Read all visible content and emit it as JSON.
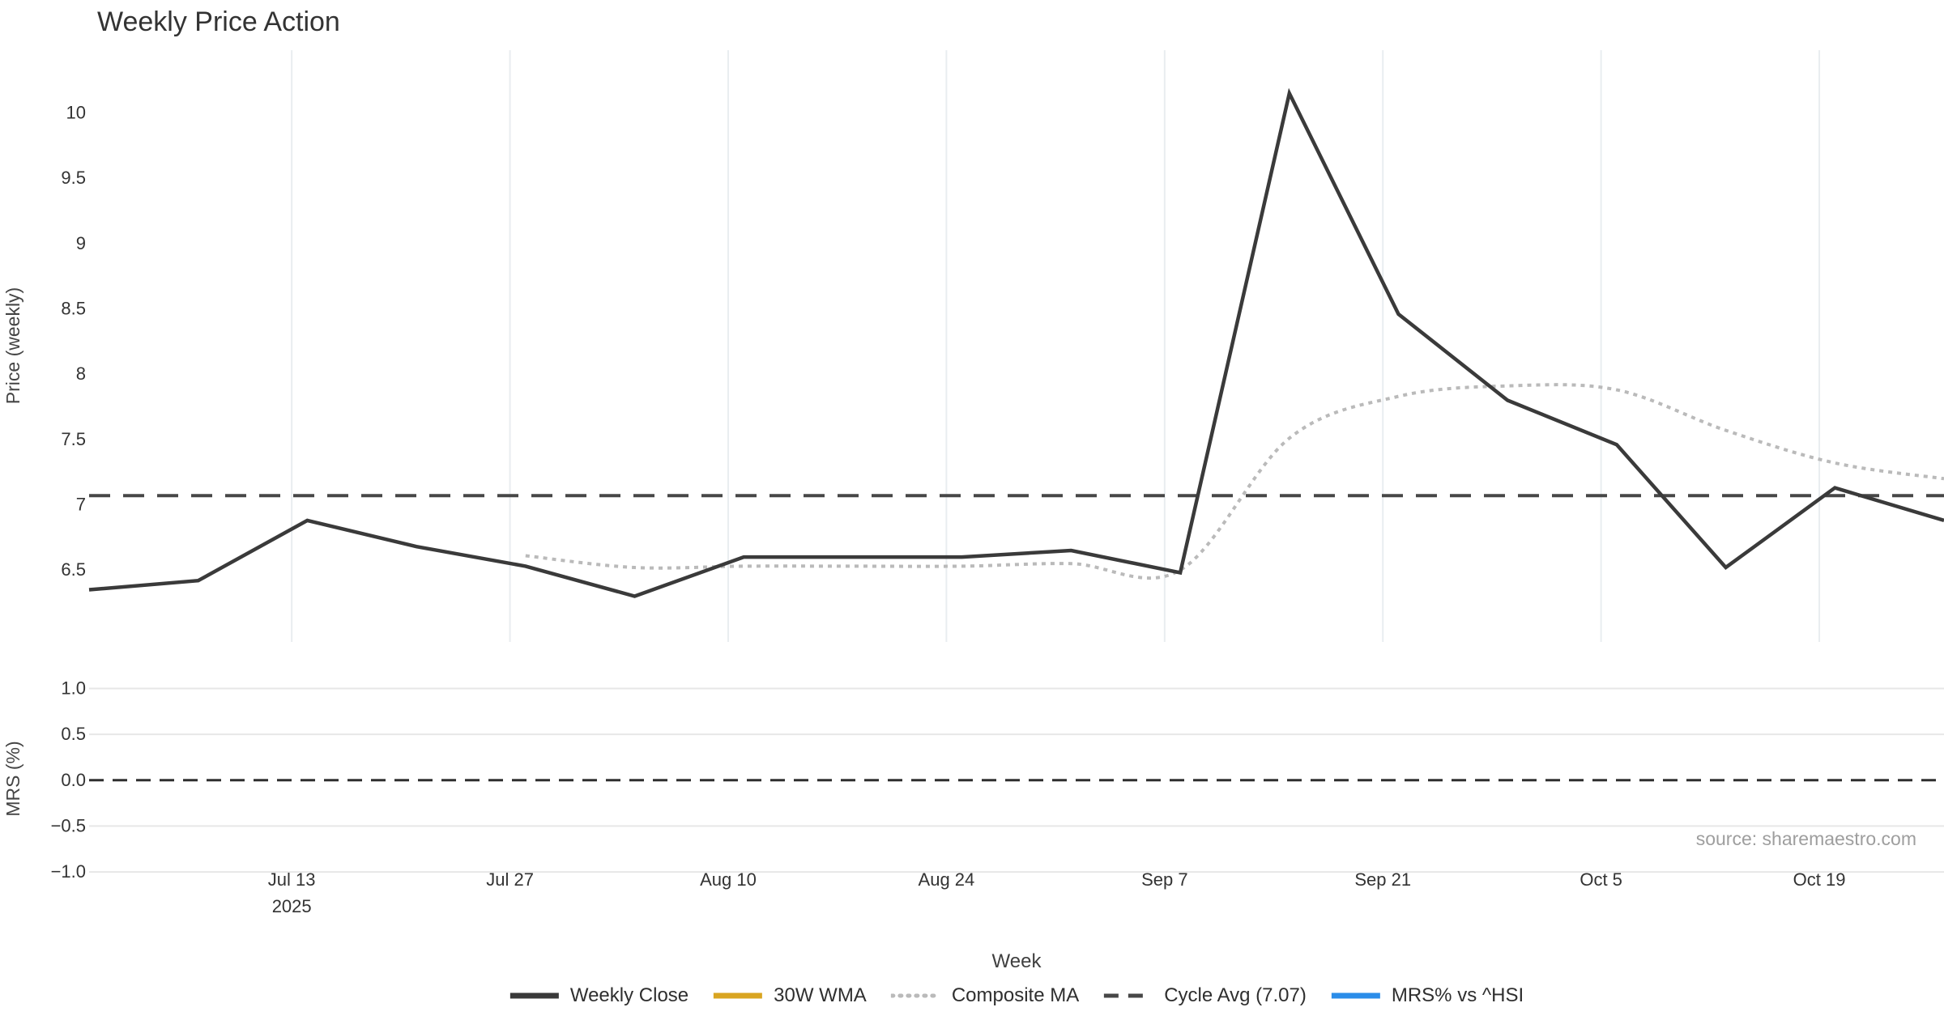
{
  "title": "Weekly Price Action",
  "x_axis_title": "Week",
  "source_note": "source: sharemaestro.com",
  "year_label": "2025",
  "colors": {
    "weekly_close": "#3a3a3a",
    "wma_30": "#d9a521",
    "composite_ma": "#bababa",
    "cycle_avg": "#474747",
    "mrs_blue": "#2b8de9",
    "grid_vertical": "#e9edf0",
    "grid_horizontal": "#e7e7e7",
    "zero_line": "#2f2f2f",
    "tick_text": "#333333",
    "axis_title_text": "#444444",
    "title_text": "#333333",
    "source_text": "#9e9e9e",
    "background": "#ffffff"
  },
  "chart_data": [
    {
      "type": "line",
      "panel": "price",
      "title": "Weekly Price Action",
      "xlabel": "Week",
      "ylabel": "Price (weekly)",
      "ylim": [
        5.95,
        10.48
      ],
      "grid": "vertical-only",
      "legend_position": "bottom-center",
      "dates": [
        "Jun 30",
        "Jul 7",
        "Jul 14",
        "Jul 21",
        "Jul 28",
        "Aug 4",
        "Aug 11",
        "Aug 18",
        "Aug 25",
        "Sep 1",
        "Sep 8",
        "Sep 15",
        "Sep 22",
        "Sep 29",
        "Oct 6",
        "Oct 13",
        "Oct 20",
        "Oct 27"
      ],
      "x_tick_labels": [
        "Jul 13",
        "Jul 27",
        "Aug 10",
        "Aug 24",
        "Sep 7",
        "Sep 21",
        "Oct 5",
        "Oct 19"
      ],
      "x_tick_data_indices": [
        2,
        4,
        6,
        8,
        10,
        12,
        14,
        16
      ],
      "y_tick_labels": [
        "10",
        "9.5",
        "9",
        "8.5",
        "8",
        "7.5",
        "7",
        "6.5"
      ],
      "y_tick_values": [
        10,
        9.5,
        9,
        8.5,
        8,
        7.5,
        7,
        6.5
      ],
      "series": [
        {
          "name": "Weekly Close",
          "style": "solid",
          "values": [
            6.35,
            6.42,
            6.88,
            6.68,
            6.53,
            6.3,
            6.6,
            6.6,
            6.6,
            6.65,
            6.48,
            10.15,
            8.46,
            7.8,
            7.46,
            6.52,
            7.13,
            6.88
          ]
        },
        {
          "name": "30W WMA",
          "style": "solid",
          "values": []
        },
        {
          "name": "Composite MA",
          "style": "dotted",
          "start_index": 4,
          "values": [
            6.61,
            6.52,
            6.53,
            6.53,
            6.53,
            6.55,
            6.5,
            7.51,
            7.83,
            7.91,
            7.88,
            7.57,
            7.32,
            7.2
          ]
        },
        {
          "name": "Cycle Avg (7.07)",
          "style": "dashed",
          "constant": 7.07
        }
      ]
    },
    {
      "type": "line",
      "panel": "mrs",
      "ylabel": "MRS (%)",
      "ylim": [
        -1.07,
        1.11
      ],
      "grid": "horizontal-only",
      "y_tick_labels": [
        "1.0",
        "0.5",
        "0.0",
        "−0.5",
        "−1.0"
      ],
      "y_tick_values": [
        1.0,
        0.5,
        0.0,
        -0.5,
        -1.0
      ],
      "zero_line": {
        "value": 0.0,
        "style": "dashed"
      },
      "series": [
        {
          "name": "MRS% vs ^HSI",
          "style": "solid",
          "values": []
        }
      ]
    }
  ],
  "legend": {
    "items": [
      {
        "label": "Weekly Close",
        "color": "#3a3a3a",
        "style": "solid"
      },
      {
        "label": "30W WMA",
        "color": "#d9a521",
        "style": "solid"
      },
      {
        "label": "Composite MA",
        "color": "#bababa",
        "style": "dotted"
      },
      {
        "label": "Cycle Avg (7.07)",
        "color": "#474747",
        "style": "dashed"
      },
      {
        "label": "MRS% vs ^HSI",
        "color": "#2b8de9",
        "style": "solid"
      }
    ]
  }
}
